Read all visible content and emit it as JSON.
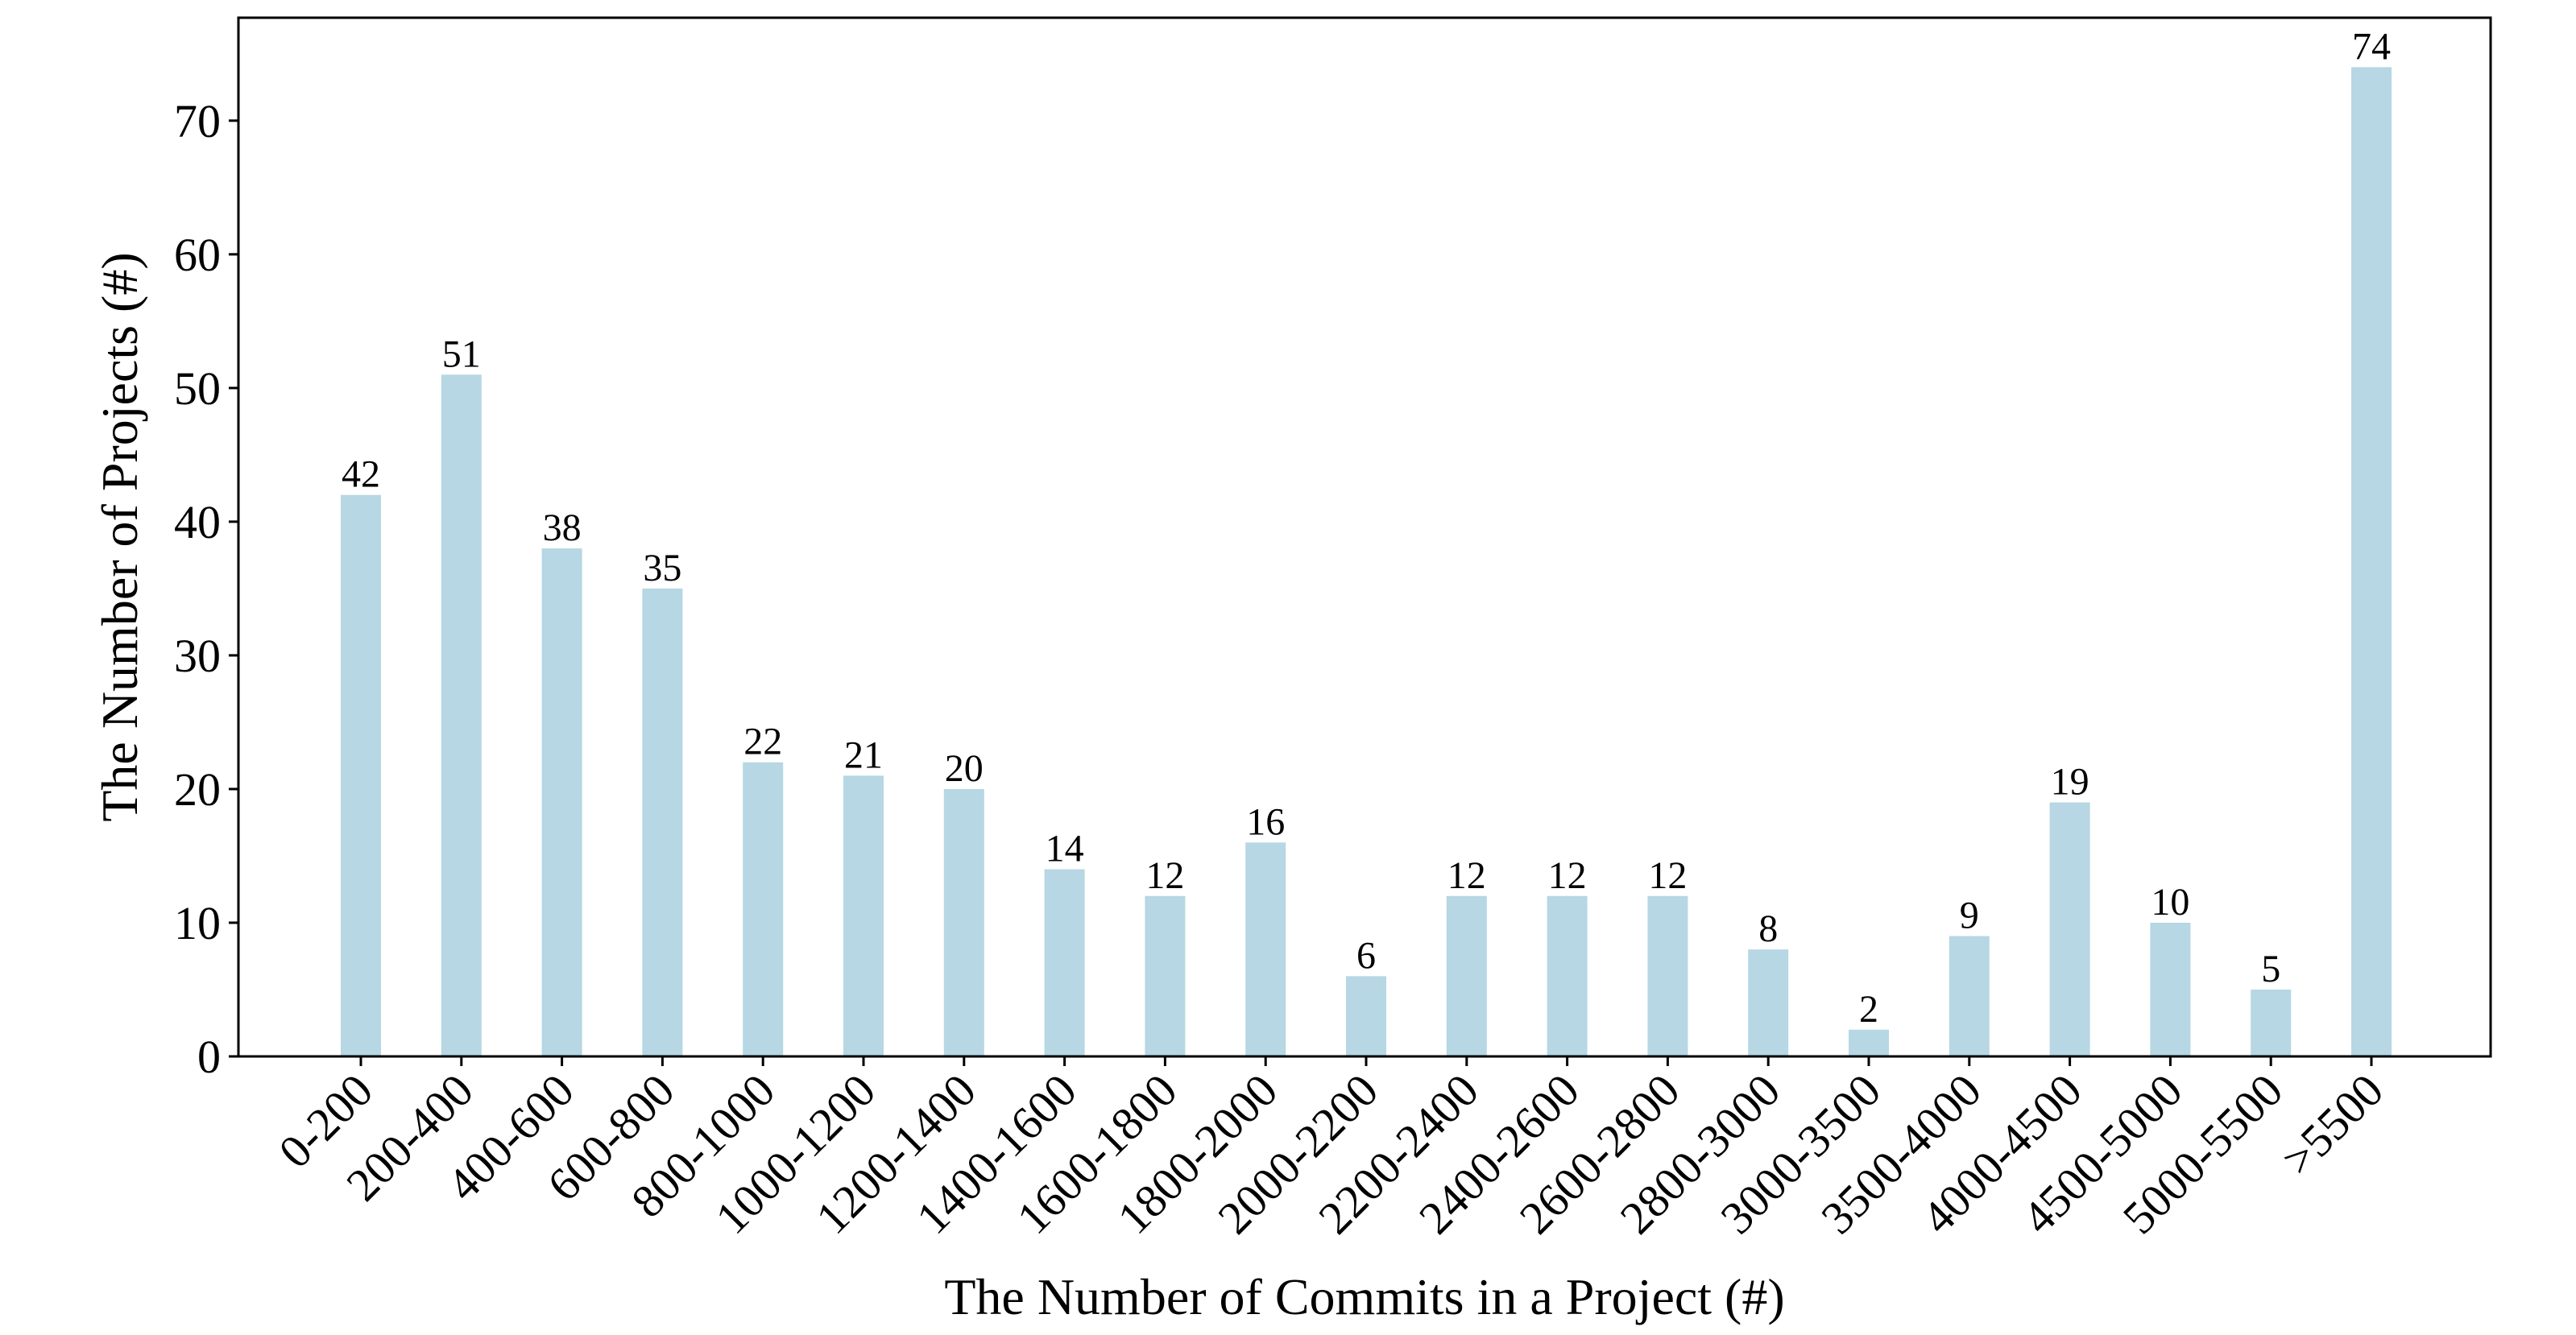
{
  "chart_data": {
    "type": "bar",
    "title": "",
    "xlabel": "The Number of Commits in a Project (#)",
    "ylabel": "The Number of Projects (#)",
    "categories": [
      "0-200",
      "200-400",
      "400-600",
      "600-800",
      "800-1000",
      "1000-1200",
      "1200-1400",
      "1400-1600",
      "1600-1800",
      "1800-2000",
      "2000-2200",
      "2200-2400",
      "2400-2600",
      "2600-2800",
      "2800-3000",
      "3000-3500",
      "3500-4000",
      "4000-4500",
      "4500-5000",
      "5000-5500",
      ">5500"
    ],
    "values": [
      42,
      51,
      38,
      35,
      22,
      21,
      20,
      14,
      12,
      16,
      6,
      12,
      12,
      12,
      8,
      2,
      9,
      19,
      10,
      5,
      74
    ],
    "value_labels": [
      "42",
      "51",
      "38",
      "35",
      "22",
      "21",
      "20",
      "14",
      "12",
      "16",
      "6",
      "12",
      "12",
      "12",
      "8",
      "2",
      "9",
      "19",
      "10",
      "5",
      "74"
    ],
    "ylim": [
      0,
      77.7
    ],
    "yticks": [
      0,
      10,
      20,
      30,
      40,
      50,
      60,
      70
    ],
    "ytick_labels": [
      "0",
      "10",
      "20",
      "30",
      "40",
      "50",
      "60",
      "70"
    ],
    "grid": false,
    "legend": "none",
    "colors": {
      "bar": "#b6d7e3",
      "axis": "#000000"
    }
  }
}
